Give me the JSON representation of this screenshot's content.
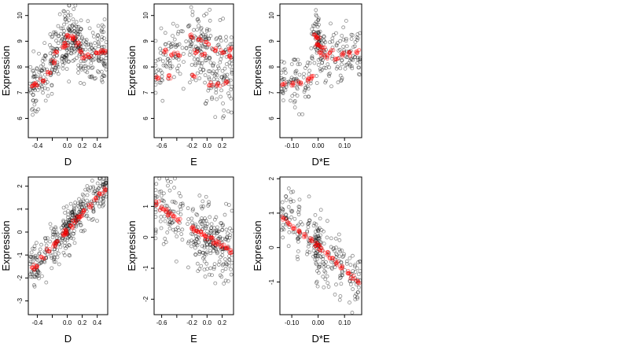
{
  "chart_data": [
    {
      "type": "scatter",
      "xlabel": "D",
      "ylabel": "Expression",
      "xlim": [
        -0.52,
        0.54
      ],
      "ylim": [
        5.25,
        10.45
      ],
      "xticks": [
        -0.4,
        -0.2,
        0.0,
        0.2,
        0.4
      ],
      "xtick_labels": [
        "-0.4",
        "",
        "0.0",
        "0.2",
        "0.4"
      ],
      "yticks": [
        6,
        7,
        8,
        9,
        10
      ],
      "ytick_labels": [
        "6",
        "7",
        "8",
        "9",
        "10"
      ],
      "xcenters": [
        -0.45,
        -0.42,
        -0.33,
        -0.25,
        -0.18,
        -0.15,
        -0.05,
        -0.02,
        0.0,
        0.05,
        0.1,
        0.14,
        0.18,
        0.22,
        0.3,
        0.38,
        0.45,
        0.5
      ],
      "fit_x": [
        -0.45,
        -0.42,
        -0.33,
        -0.25,
        -0.18,
        -0.15,
        -0.05,
        -0.02,
        0.0,
        0.05,
        0.1,
        0.14,
        0.18,
        0.22,
        0.3,
        0.38,
        0.45,
        0.5
      ],
      "fit_y": [
        7.3,
        7.35,
        7.5,
        7.75,
        8.2,
        8.55,
        8.75,
        8.9,
        9.2,
        9.15,
        9.1,
        8.9,
        8.6,
        8.4,
        8.45,
        8.55,
        8.6,
        8.6
      ],
      "obs_spread": 1.1,
      "cluster_spread": 0.05
    },
    {
      "type": "scatter",
      "xlabel": "E",
      "ylabel": "Expression",
      "xlim": [
        -0.7,
        0.35
      ],
      "ylim": [
        5.25,
        10.45
      ],
      "xticks": [
        -0.6,
        -0.4,
        -0.2,
        0.0,
        0.2
      ],
      "xtick_labels": [
        "-0.6",
        "",
        "-0.2",
        "0.0",
        "0.2"
      ],
      "yticks": [
        6,
        7,
        8,
        9,
        10
      ],
      "ytick_labels": [
        "6",
        "7",
        "8",
        "9",
        "10"
      ],
      "xcenters": [
        -0.66,
        -0.55,
        -0.45,
        -0.38,
        -0.2,
        -0.15,
        -0.1,
        -0.05,
        0.0,
        0.05,
        0.1,
        0.15,
        0.2,
        0.25,
        0.3
      ],
      "fit_x": [
        -0.66,
        -0.55,
        -0.5,
        -0.45,
        -0.38,
        -0.2,
        -0.18,
        -0.15,
        -0.1,
        -0.05,
        0.0,
        0.05,
        0.1,
        0.15,
        0.2,
        0.25,
        0.3,
        0.3
      ],
      "fit_y": [
        7.6,
        8.6,
        7.6,
        8.5,
        8.5,
        9.2,
        7.7,
        8.6,
        9.1,
        8.5,
        8.9,
        7.35,
        8.7,
        7.3,
        8.6,
        7.4,
        8.4,
        8.7
      ],
      "obs_spread": 1.2,
      "cluster_spread": 0.08
    },
    {
      "type": "scatter",
      "xlabel": "D*E",
      "ylabel": "Expression",
      "xlim": [
        -0.145,
        0.165
      ],
      "ylim": [
        5.25,
        10.45
      ],
      "xticks": [
        -0.1,
        0.0,
        0.1
      ],
      "xtick_labels": [
        "-0.10",
        "0.00",
        "0.10"
      ],
      "yticks": [
        6,
        7,
        8,
        9,
        10
      ],
      "ytick_labels": [
        "6",
        "7",
        "8",
        "9",
        "10"
      ],
      "xcenters": [
        -0.13,
        -0.1,
        -0.07,
        -0.04,
        -0.01,
        -0.005,
        0.0,
        0.01,
        0.03,
        0.06,
        0.09,
        0.12,
        0.15
      ],
      "fit_x": [
        -0.13,
        -0.1,
        -0.07,
        -0.04,
        -0.02,
        -0.01,
        -0.005,
        0.0,
        0.005,
        0.01,
        0.02,
        0.03,
        0.05,
        0.07,
        0.09,
        0.12,
        0.15
      ],
      "fit_y": [
        7.3,
        7.35,
        7.4,
        7.5,
        7.6,
        9.2,
        8.9,
        9.1,
        8.8,
        8.5,
        8.7,
        8.4,
        8.6,
        8.3,
        8.5,
        8.5,
        8.6
      ],
      "obs_spread": 1.1,
      "cluster_spread": 0.015
    },
    {
      "type": "scatter",
      "xlabel": "D",
      "ylabel": "Expression",
      "xlim": [
        -0.52,
        0.54
      ],
      "ylim": [
        -3.6,
        2.4
      ],
      "xticks": [
        -0.4,
        -0.2,
        0.0,
        0.2,
        0.4
      ],
      "xtick_labels": [
        "-0.4",
        "",
        "0.0",
        "0.2",
        "0.4"
      ],
      "yticks": [
        -3,
        -2,
        -1,
        0,
        1,
        2
      ],
      "ytick_labels": [
        "-3",
        "-2",
        "-1",
        "0",
        "1",
        "2"
      ],
      "xcenters": [
        -0.45,
        -0.42,
        -0.33,
        -0.25,
        -0.18,
        -0.15,
        -0.05,
        -0.02,
        0.0,
        0.05,
        0.1,
        0.14,
        0.18,
        0.22,
        0.3,
        0.38,
        0.45,
        0.5
      ],
      "fit_x": [
        -0.45,
        -0.42,
        -0.33,
        -0.25,
        -0.18,
        -0.15,
        -0.05,
        -0.02,
        0.0,
        0.05,
        0.1,
        0.14,
        0.18,
        0.22,
        0.3,
        0.38,
        0.45,
        0.5
      ],
      "fit_y": [
        -1.6,
        -1.5,
        -1.15,
        -0.8,
        -0.55,
        -0.45,
        -0.1,
        0.0,
        0.05,
        0.25,
        0.45,
        0.6,
        0.75,
        0.9,
        1.15,
        1.45,
        1.7,
        1.85
      ],
      "obs_spread": 0.9,
      "cluster_spread": 0.05
    },
    {
      "type": "scatter",
      "xlabel": "E",
      "ylabel": "Expression",
      "xlim": [
        -0.7,
        0.35
      ],
      "ylim": [
        -2.5,
        1.95
      ],
      "xticks": [
        -0.6,
        -0.4,
        -0.2,
        0.0,
        0.2
      ],
      "xtick_labels": [
        "-0.6",
        "",
        "-0.2",
        "0.0",
        "0.2"
      ],
      "yticks": [
        -2,
        -1,
        0,
        1
      ],
      "ytick_labels": [
        "-2",
        "-1",
        "0",
        "1"
      ],
      "xcenters": [
        -0.66,
        -0.55,
        -0.45,
        -0.38,
        -0.2,
        -0.15,
        -0.1,
        -0.05,
        0.0,
        0.05,
        0.1,
        0.15,
        0.2,
        0.25,
        0.3
      ],
      "fit_x": [
        -0.66,
        -0.6,
        -0.55,
        -0.5,
        -0.45,
        -0.38,
        -0.2,
        -0.15,
        -0.1,
        -0.05,
        0.0,
        0.05,
        0.1,
        0.15,
        0.2,
        0.25,
        0.3
      ],
      "fit_y": [
        1.1,
        0.95,
        0.85,
        0.75,
        0.7,
        0.55,
        0.3,
        0.2,
        0.15,
        0.1,
        0.0,
        -0.05,
        -0.15,
        -0.2,
        -0.3,
        -0.35,
        -0.45
      ],
      "obs_spread": 1.1,
      "cluster_spread": 0.06
    },
    {
      "type": "scatter",
      "xlabel": "D*E",
      "ylabel": "Expression",
      "xlim": [
        -0.145,
        0.165
      ],
      "ylim": [
        -1.95,
        2.05
      ],
      "xticks": [
        -0.1,
        0.0,
        0.1
      ],
      "xtick_labels": [
        "-0.10",
        "0.00",
        "0.10"
      ],
      "yticks": [
        -1,
        0,
        1,
        2
      ],
      "ytick_labels": [
        "-1",
        "0",
        "1",
        "2"
      ],
      "xcenters": [
        -0.13,
        -0.1,
        -0.07,
        -0.04,
        -0.01,
        -0.005,
        0.0,
        0.01,
        0.03,
        0.06,
        0.09,
        0.12,
        0.15
      ],
      "fit_x": [
        -0.13,
        -0.11,
        -0.09,
        -0.07,
        -0.05,
        -0.03,
        -0.01,
        0.0,
        0.01,
        0.03,
        0.05,
        0.07,
        0.09,
        0.11,
        0.13,
        0.15
      ],
      "fit_y": [
        0.85,
        0.72,
        0.6,
        0.48,
        0.35,
        0.22,
        0.1,
        0.02,
        -0.06,
        -0.18,
        -0.32,
        -0.45,
        -0.58,
        -0.7,
        -0.85,
        -1.0
      ],
      "obs_spread": 0.9,
      "cluster_spread": 0.012
    }
  ]
}
